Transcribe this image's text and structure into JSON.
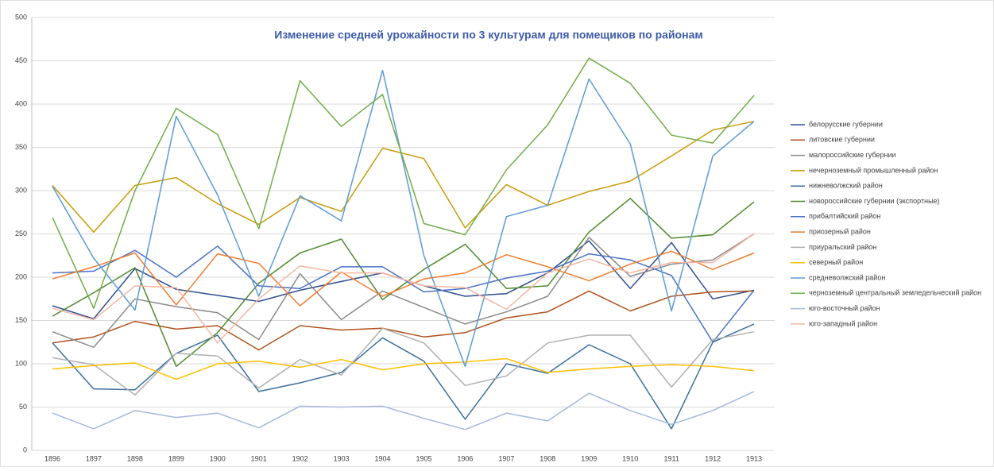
{
  "chart_data": {
    "type": "line",
    "title": "Изменение средней урожайности по 3 культурам для помещиков по районам",
    "categories": [
      "1896",
      "1897",
      "1898",
      "1899",
      "1900",
      "1901",
      "1902",
      "1903",
      "1904",
      "1905",
      "1906",
      "1907",
      "1908",
      "1909",
      "1910",
      "1911",
      "1912",
      "1913"
    ],
    "ylim": [
      0,
      500
    ],
    "yticks": [
      0,
      50,
      100,
      150,
      200,
      250,
      300,
      350,
      400,
      450,
      500
    ],
    "grid": true,
    "legend": "right",
    "series": [
      {
        "name": "белорусские губернии",
        "color": "#2f4f8f",
        "values": [
          167,
          152,
          210,
          186,
          179,
          172,
          185,
          195,
          205,
          190,
          178,
          181,
          205,
          242,
          187,
          240,
          175,
          185
        ]
      },
      {
        "name": "литовские губернии",
        "color": "#b0521c",
        "values": [
          124,
          131,
          149,
          140,
          144,
          116,
          144,
          139,
          141,
          131,
          136,
          153,
          160,
          184,
          161,
          178,
          183,
          184
        ]
      },
      {
        "name": "малороссийские губернии",
        "color": "#8a8a8a",
        "values": [
          137,
          119,
          175,
          166,
          159,
          128,
          204,
          151,
          184,
          165,
          146,
          160,
          178,
          246,
          201,
          215,
          220,
          250
        ]
      },
      {
        "name": "нечерноземный промышленный район",
        "color": "#c99a06",
        "values": [
          306,
          252,
          306,
          315,
          285,
          261,
          292,
          276,
          349,
          337,
          257,
          307,
          283,
          299,
          311,
          340,
          370,
          380
        ]
      },
      {
        "name": "нижневолжский район",
        "color": "#3a6f9f",
        "values": [
          124,
          71,
          70,
          112,
          133,
          68,
          78,
          90,
          130,
          103,
          36,
          100,
          89,
          122,
          100,
          25,
          125,
          146
        ]
      },
      {
        "name": "новороссийские губернии (экспортные)",
        "color": "#4f8a2c",
        "values": [
          155,
          182,
          211,
          97,
          136,
          193,
          228,
          244,
          174,
          209,
          238,
          187,
          190,
          252,
          291,
          245,
          249,
          287
        ]
      },
      {
        "name": "прибалтийский район",
        "color": "#4a72c4",
        "values": [
          205,
          207,
          231,
          200,
          236,
          190,
          187,
          212,
          212,
          183,
          187,
          199,
          207,
          227,
          220,
          202,
          125,
          185
        ]
      },
      {
        "name": "приозерный район",
        "color": "#ee7d31",
        "values": [
          198,
          212,
          228,
          168,
          227,
          216,
          167,
          206,
          178,
          198,
          205,
          226,
          212,
          196,
          215,
          230,
          209,
          228
        ]
      },
      {
        "name": "приуральский район",
        "color": "#b0b0b0",
        "values": [
          107,
          99,
          64,
          112,
          109,
          72,
          105,
          87,
          141,
          124,
          75,
          86,
          124,
          133,
          133,
          73,
          128,
          137
        ]
      },
      {
        "name": "северный район",
        "color": "#ffc000",
        "values": [
          94,
          98,
          101,
          82,
          100,
          103,
          96,
          105,
          93,
          100,
          102,
          106,
          90,
          94,
          97,
          99,
          97,
          92
        ]
      },
      {
        "name": "средневолжский район",
        "color": "#5b9bd5",
        "values": [
          305,
          222,
          162,
          386,
          295,
          178,
          294,
          265,
          439,
          225,
          97,
          270,
          283,
          429,
          354,
          161,
          340,
          380
        ]
      },
      {
        "name": "черноземный центральный земледельческий район",
        "color": "#70ad47",
        "values": [
          269,
          164,
          300,
          395,
          365,
          256,
          427,
          374,
          411,
          262,
          249,
          324,
          376,
          453,
          424,
          364,
          355,
          410
        ]
      },
      {
        "name": "юго-восточный район",
        "color": "#a5b8dd",
        "values": [
          43,
          25,
          46,
          38,
          43,
          26,
          51,
          50,
          51,
          37,
          24,
          43,
          34,
          66,
          46,
          30,
          46,
          68
        ]
      },
      {
        "name": "юго-западный район",
        "color": "#f4b6a0",
        "values": [
          164,
          151,
          190,
          188,
          124,
          175,
          213,
          205,
          205,
          190,
          188,
          163,
          205,
          221,
          205,
          217,
          217,
          250
        ]
      }
    ]
  }
}
